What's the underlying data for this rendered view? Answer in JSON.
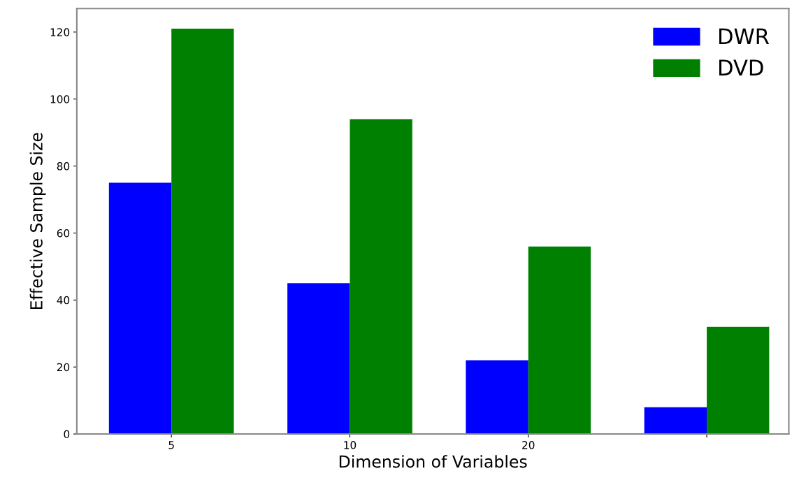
{
  "chart_data": {
    "type": "bar",
    "xlabel": "Dimension of Variables",
    "ylabel": "Effective Sample Size",
    "categories": [
      "5",
      "10",
      "20",
      null
    ],
    "series": [
      {
        "name": "DWR",
        "color": "#0000ff",
        "values": [
          75,
          45,
          22,
          8
        ]
      },
      {
        "name": "DVD",
        "color": "#008000",
        "values": [
          121,
          94,
          56,
          32
        ]
      }
    ],
    "ylim": [
      0,
      127
    ],
    "yticks": [
      0,
      20,
      40,
      60,
      80,
      100,
      120
    ],
    "grid": false,
    "legend": "top right"
  }
}
